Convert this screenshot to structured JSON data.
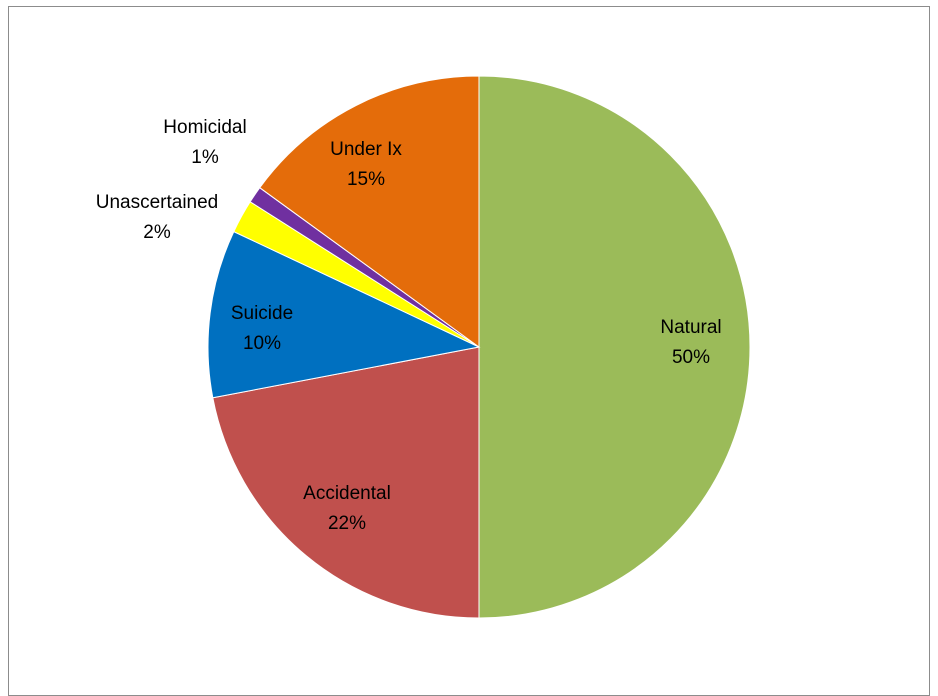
{
  "chart_data": {
    "type": "pie",
    "slices": [
      {
        "label": "Natural",
        "value": 50,
        "pct_label": "50%",
        "color": "#9BBB59"
      },
      {
        "label": "Accidental",
        "value": 22,
        "pct_label": "22%",
        "color": "#C0504D"
      },
      {
        "label": "Suicide",
        "value": 10,
        "pct_label": "10%",
        "color": "#0070C0"
      },
      {
        "label": "Unascertained",
        "value": 2,
        "pct_label": "2%",
        "color": "#FFFF00"
      },
      {
        "label": "Homicidal",
        "value": 1,
        "pct_label": "1%",
        "color": "#7030A0"
      },
      {
        "label": "Under Ix",
        "value": 15,
        "pct_label": "15%",
        "color": "#E46C0A"
      }
    ],
    "start": "12 o'clock",
    "direction": "clockwise",
    "legend": "none"
  }
}
